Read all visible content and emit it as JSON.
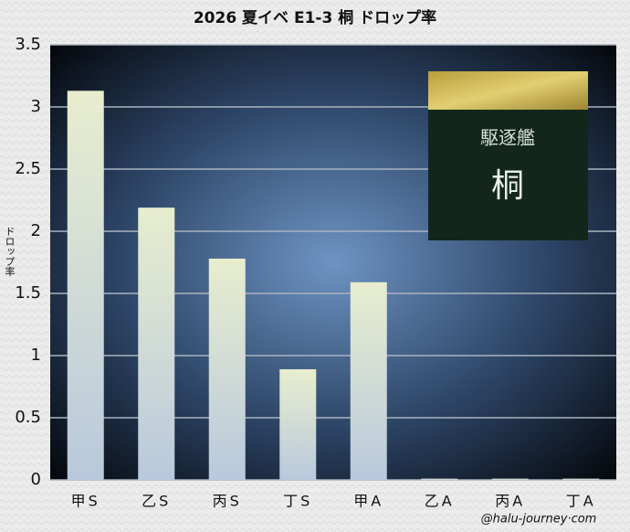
{
  "chart_data": {
    "type": "bar",
    "title": "2026 夏イベ E1-3 桐 ドロップ率",
    "y_label": "ドロップ率",
    "categories": [
      "甲S",
      "乙S",
      "丙S",
      "丁S",
      "甲A",
      "乙A",
      "丙A",
      "丁A"
    ],
    "values": [
      3.13,
      2.19,
      1.78,
      0.89,
      1.59,
      0.01,
      0.01,
      0.01
    ],
    "ylim": [
      0,
      3.5
    ],
    "yticks": [
      0,
      0.5,
      1,
      1.5,
      2,
      2.5,
      3,
      3.5
    ],
    "grid": true,
    "inset_label": "駆逐艦",
    "inset_name": "桐",
    "watermark": "@halu-journey·com"
  }
}
